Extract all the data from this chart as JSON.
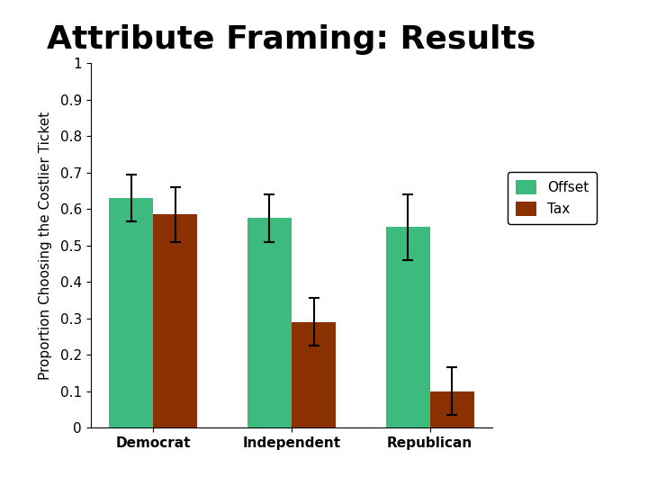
{
  "title": "Attribute Framing: Results",
  "ylabel": "Proportion Choosing the Costlier Ticket",
  "categories": [
    "Democrat",
    "Independent",
    "Republican"
  ],
  "series": {
    "Offset": {
      "values": [
        0.63,
        0.575,
        0.55
      ],
      "errors": [
        0.065,
        0.065,
        0.09
      ],
      "color": "#3dba7e"
    },
    "Tax": {
      "values": [
        0.585,
        0.29,
        0.1
      ],
      "errors": [
        0.075,
        0.065,
        0.065
      ],
      "color": "#8b3000"
    }
  },
  "ylim": [
    0,
    1.0
  ],
  "yticks": [
    0,
    0.1,
    0.2,
    0.3,
    0.4,
    0.5,
    0.6,
    0.7,
    0.8,
    0.9,
    1.0
  ],
  "bar_width": 0.32,
  "title_fontsize": 26,
  "ylabel_fontsize": 11,
  "tick_fontsize": 11,
  "legend_fontsize": 11,
  "background_color": "#ffffff"
}
